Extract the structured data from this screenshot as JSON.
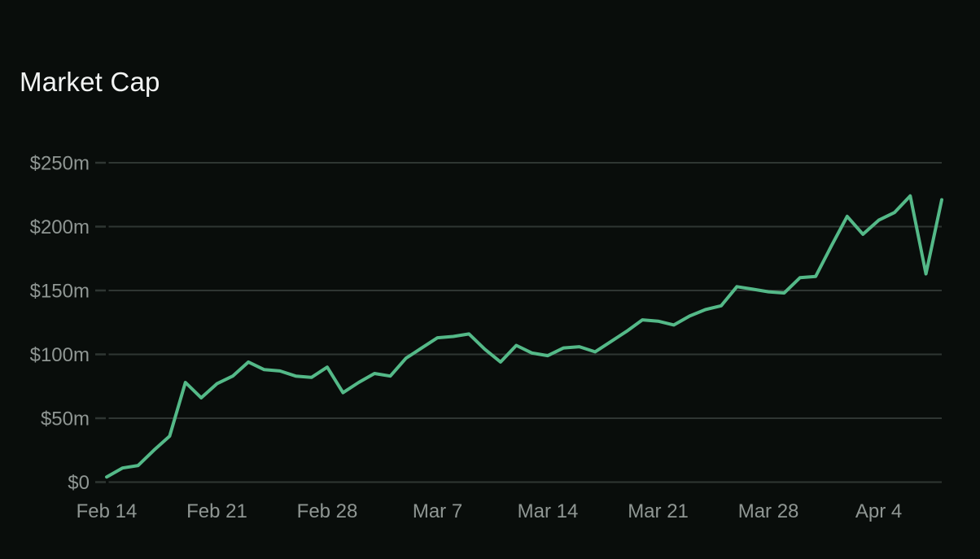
{
  "chart": {
    "title": "Market Cap"
  },
  "chart_data": {
    "type": "line",
    "title": "Market Cap",
    "series_name": "Market Cap",
    "unit": "USD millions ($m)",
    "x": [
      "Feb 14",
      "Feb 15",
      "Feb 16",
      "Feb 17",
      "Feb 18",
      "Feb 19",
      "Feb 20",
      "Feb 21",
      "Feb 22",
      "Feb 23",
      "Feb 24",
      "Feb 25",
      "Feb 26",
      "Feb 27",
      "Feb 28",
      "Mar 1",
      "Mar 2",
      "Mar 3",
      "Mar 4",
      "Mar 5",
      "Mar 6",
      "Mar 7",
      "Mar 8",
      "Mar 9",
      "Mar 10",
      "Mar 11",
      "Mar 12",
      "Mar 13",
      "Mar 14",
      "Mar 15",
      "Mar 16",
      "Mar 17",
      "Mar 18",
      "Mar 19",
      "Mar 20",
      "Mar 21",
      "Mar 22",
      "Mar 23",
      "Mar 24",
      "Mar 25",
      "Mar 26",
      "Mar 27",
      "Mar 28",
      "Mar 29",
      "Mar 30",
      "Mar 31",
      "Apr 1",
      "Apr 2",
      "Apr 3",
      "Apr 4",
      "Apr 5",
      "Apr 6",
      "Apr 7",
      "Apr 8"
    ],
    "values": [
      4,
      11,
      13,
      25,
      36,
      78,
      66,
      77,
      83,
      94,
      88,
      87,
      83,
      82,
      90,
      70,
      78,
      85,
      83,
      97,
      105,
      113,
      114,
      116,
      104,
      94,
      107,
      101,
      99,
      105,
      106,
      102,
      110,
      118,
      127,
      126,
      123,
      130,
      135,
      138,
      153,
      151,
      149,
      148,
      160,
      161,
      185,
      208,
      194,
      205,
      211,
      224,
      163,
      221
    ],
    "ylim": [
      0,
      250
    ],
    "y_tick_values": [
      250,
      200,
      150,
      100,
      50,
      0
    ],
    "y_tick_labels": [
      "$250m",
      "$200m",
      "$150m",
      "$100m",
      "$50m",
      "$0"
    ],
    "x_tick_indices": [
      0,
      7,
      14,
      21,
      28,
      35,
      42,
      49
    ],
    "x_tick_labels": [
      "Feb 14",
      "Feb 21",
      "Feb 28",
      "Mar 7",
      "Mar 14",
      "Mar 21",
      "Mar 28",
      "Apr 4"
    ],
    "grid": "horizontal",
    "legend": "none",
    "colors": {
      "background": "#090d0b",
      "line": "#54b988",
      "grid": "#2f3633",
      "axis_label": "#8f9693",
      "title": "#f2f4f3"
    }
  }
}
